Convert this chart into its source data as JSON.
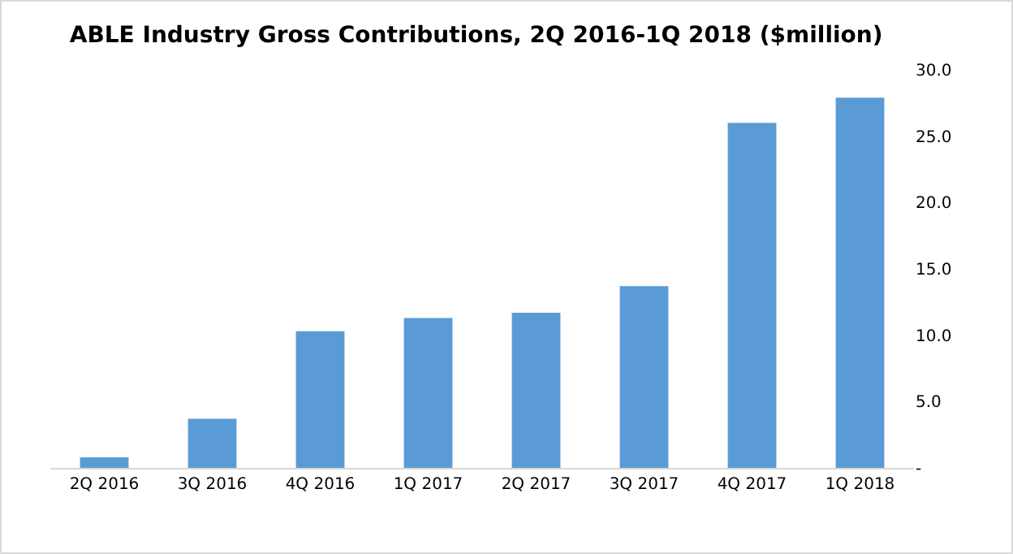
{
  "chart_data": {
    "type": "bar",
    "title": "ABLE Industry Gross Contributions, 2Q 2016-1Q 2018 ($million)",
    "categories": [
      "2Q 2016",
      "3Q 2016",
      "4Q 2016",
      "1Q 2017",
      "2Q 2017",
      "3Q 2017",
      "4Q 2017",
      "1Q 2018"
    ],
    "values": [
      0.8,
      3.7,
      10.3,
      11.3,
      11.7,
      13.7,
      26.0,
      27.9
    ],
    "color": "#5b9bd5",
    "ylim": [
      0,
      30
    ],
    "yticks": [
      {
        "value": 0,
        "label": "-"
      },
      {
        "value": 5,
        "label": "5.0"
      },
      {
        "value": 10,
        "label": "10.0"
      },
      {
        "value": 15,
        "label": "15.0"
      },
      {
        "value": 20,
        "label": "20.0"
      },
      {
        "value": 25,
        "label": "25.0"
      },
      {
        "value": 30,
        "label": "30.0"
      }
    ],
    "grid": false,
    "legend": false
  }
}
